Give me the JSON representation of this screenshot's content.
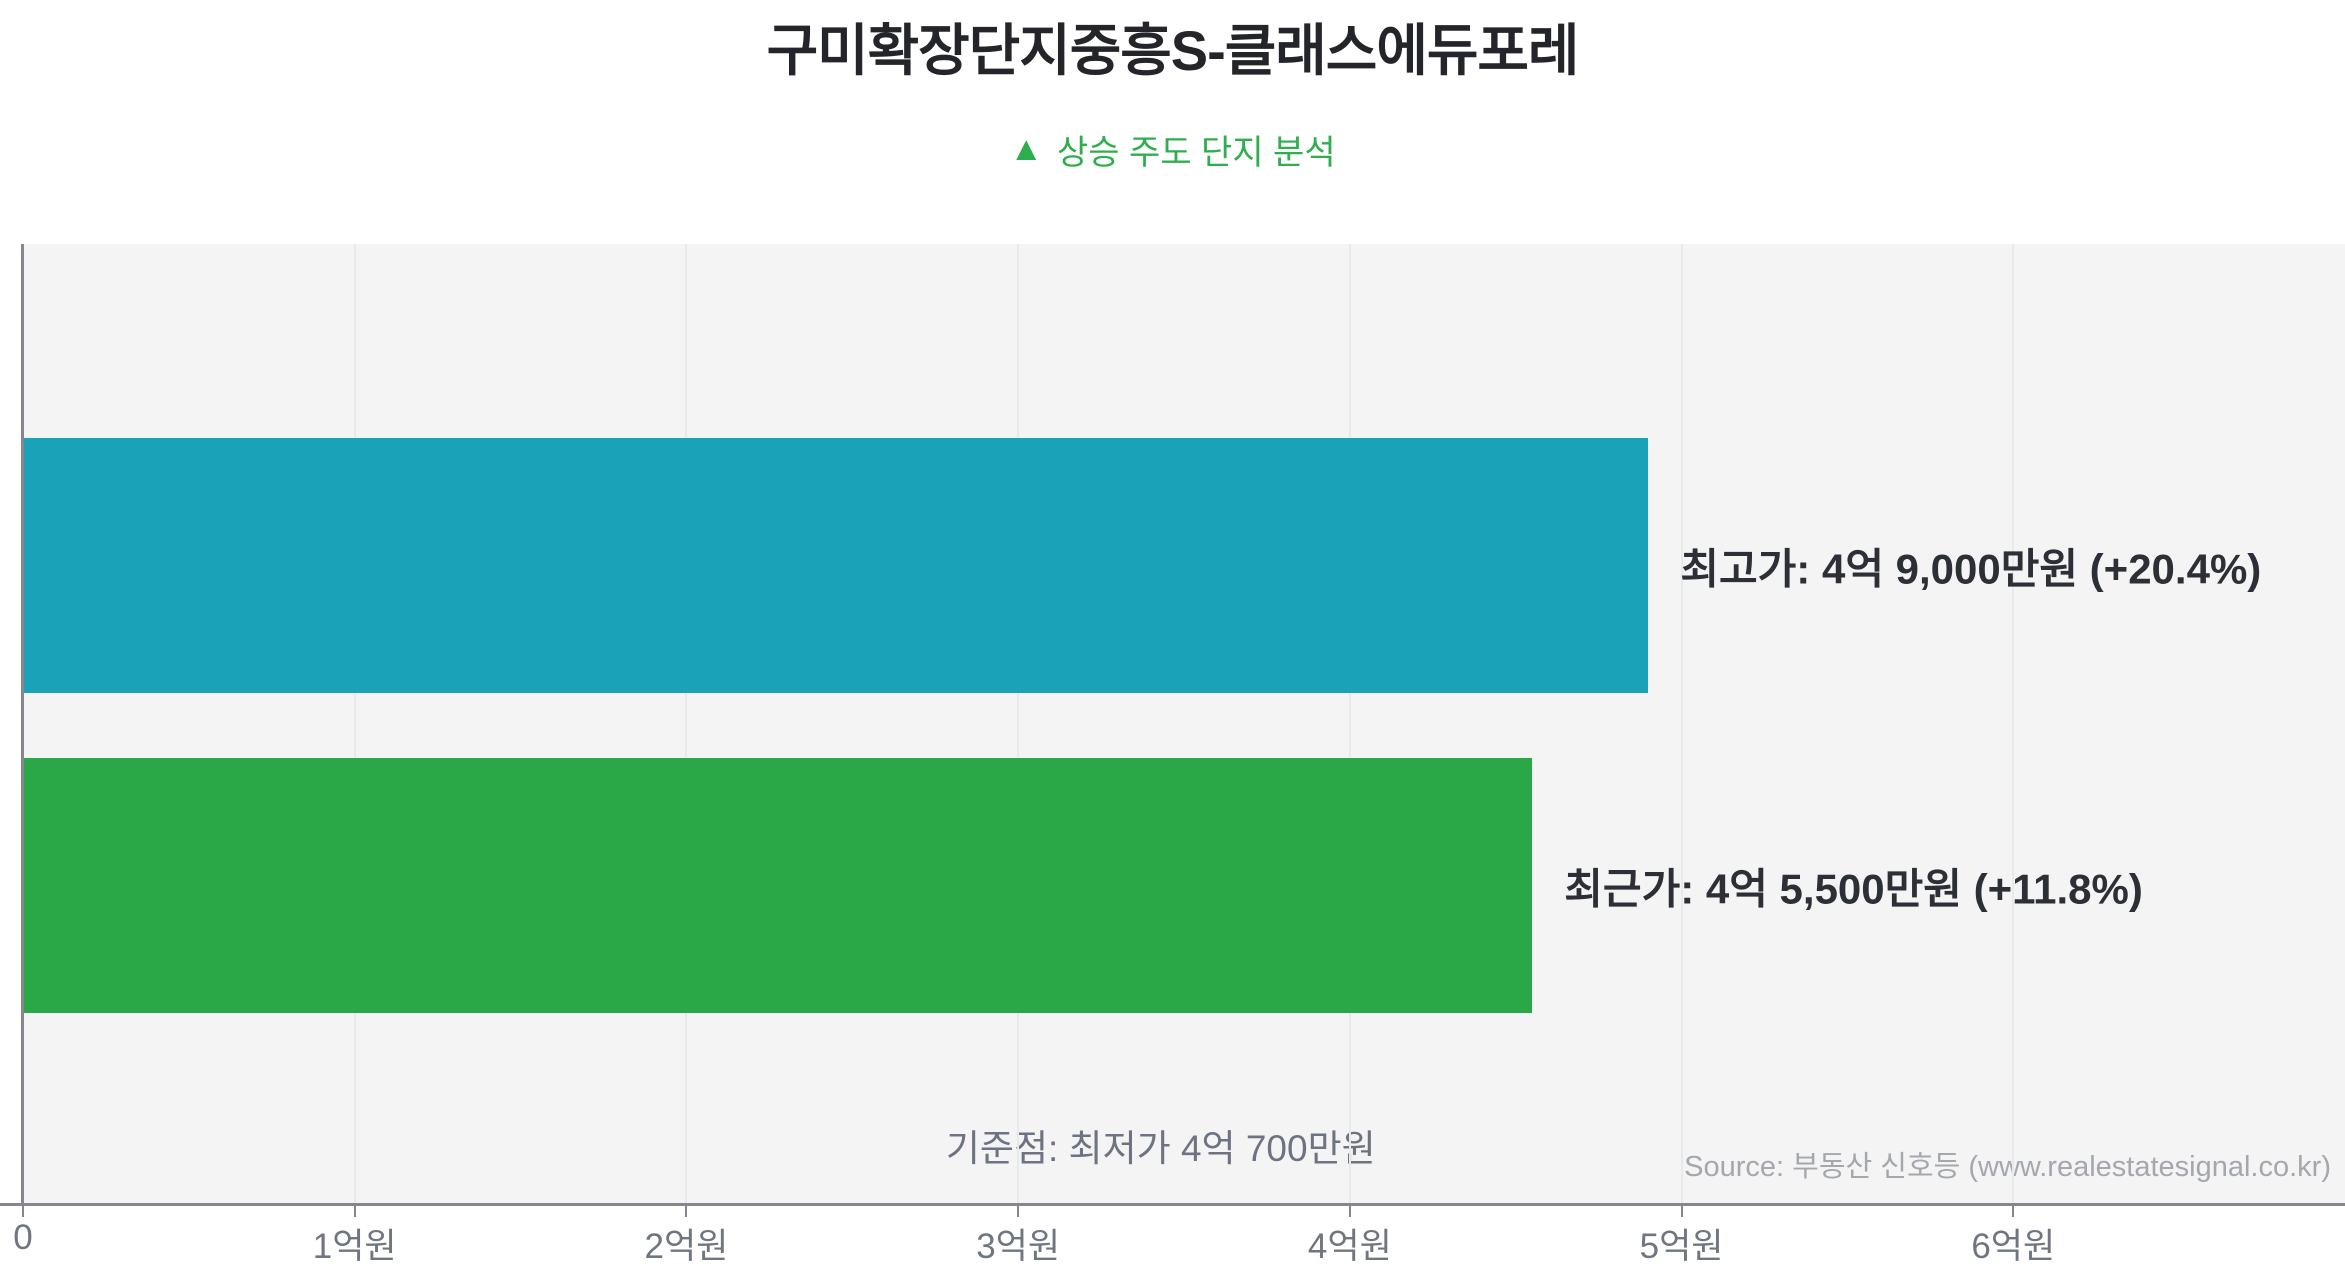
{
  "chart_data": {
    "type": "bar",
    "orientation": "horizontal",
    "title": "구미확장단지중흥S-클래스에듀포레",
    "subtitle_marker": "▲",
    "subtitle_text": "상승 주도 단지 분석",
    "subtitle_color": "#2fae4e",
    "categories": [
      "최고가",
      "최근가"
    ],
    "series": [
      {
        "name": "최고가",
        "value_eok": 4.9,
        "value_text": "4억 9,000만원",
        "change_pct": "+20.4%",
        "label": "최고가: 4억 9,000만원 (+20.4%)",
        "color": "#1aa3b8"
      },
      {
        "name": "최근가",
        "value_eok": 4.55,
        "value_text": "4억 5,500만원",
        "change_pct": "+11.8%",
        "label": "최근가: 4억 5,500만원 (+11.8%)",
        "color": "#2aa847"
      }
    ],
    "baseline_annotation": "기준점: 최저가 4억 700만원",
    "baseline_value_eok": 4.07,
    "source": "Source: 부동산 신호등 (www.realestatesignal.co.kr)",
    "x_axis": {
      "min": 0,
      "max": 7,
      "unit": "억원",
      "ticks": [
        {
          "value": 0,
          "label": "0"
        },
        {
          "value": 1,
          "label": "1억원"
        },
        {
          "value": 2,
          "label": "2억원"
        },
        {
          "value": 3,
          "label": "3억원"
        },
        {
          "value": 4,
          "label": "4억원"
        },
        {
          "value": 5,
          "label": "5억원"
        },
        {
          "value": 6,
          "label": "6억원"
        }
      ],
      "gridlines": [
        1,
        2,
        3,
        4,
        5,
        6
      ],
      "grid_on": true
    },
    "plot_background": "#f4f4f5",
    "axis_color": "#85868f"
  }
}
